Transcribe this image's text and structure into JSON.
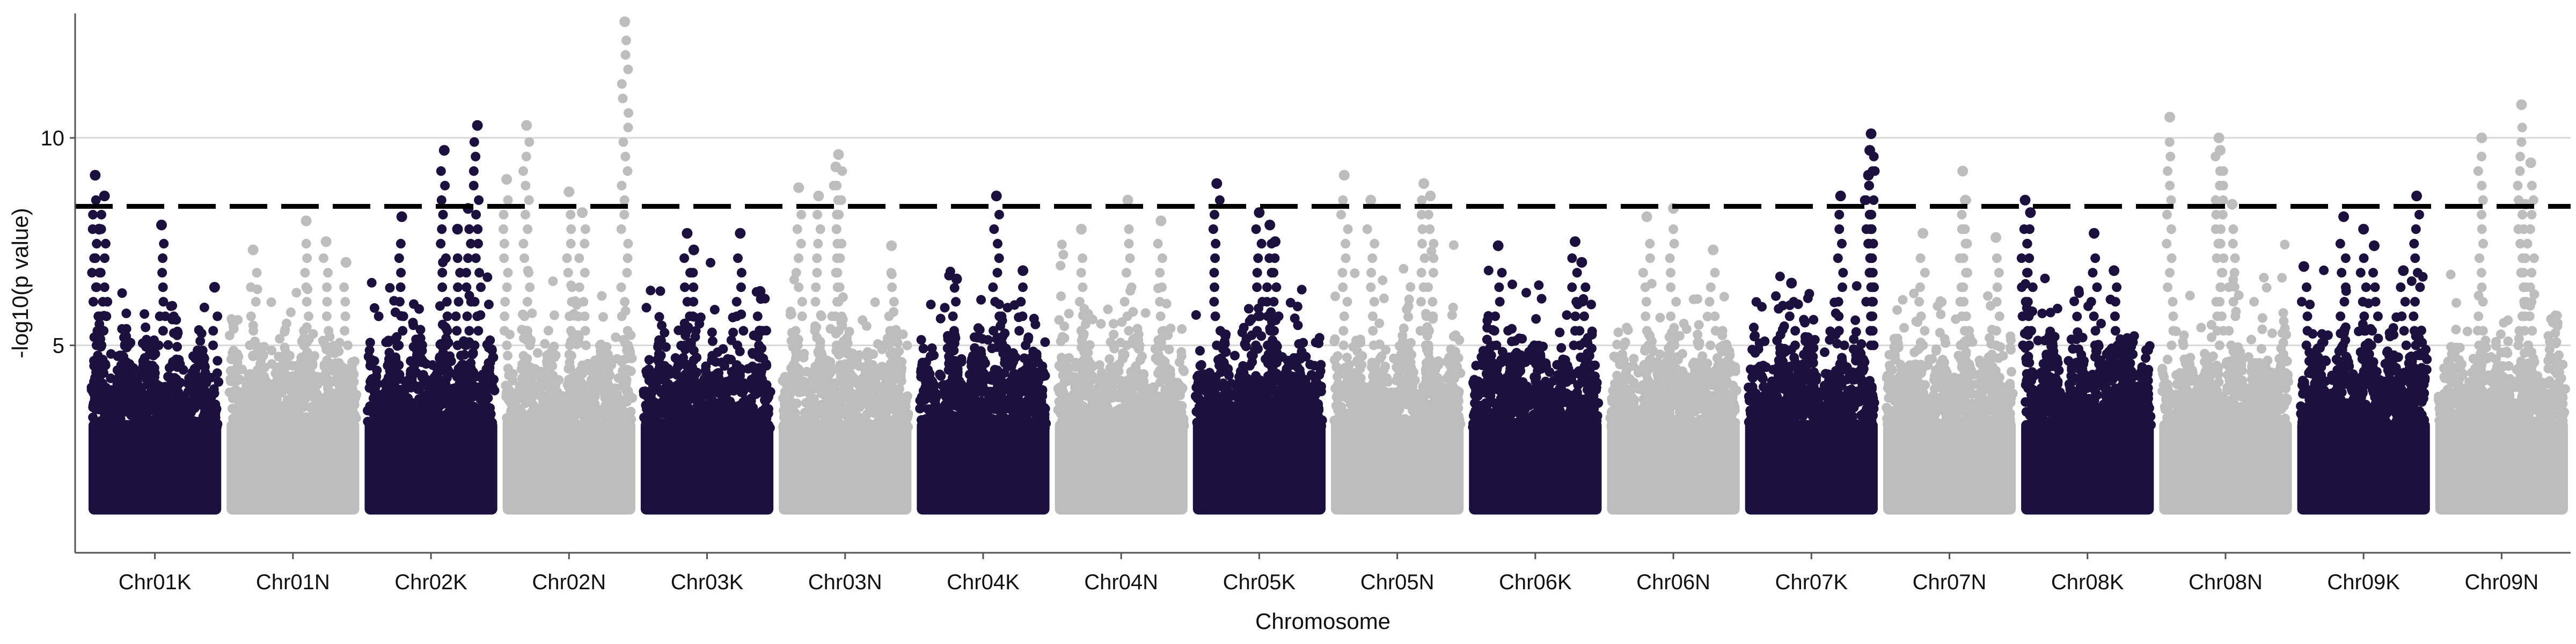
{
  "chart_data": {
    "type": "scatter",
    "title": "",
    "xlabel": "Chromosome",
    "ylabel": "-log10(p value)",
    "ylim": [
      0,
      13
    ],
    "y_ticks": [
      "5",
      "10"
    ],
    "y_tick_values": [
      5,
      10
    ],
    "grid": "horizontal",
    "threshold": 8.35,
    "colors": {
      "dark": "#1c103f",
      "light": "#bdbdbd"
    },
    "categories": [
      "Chr01K",
      "Chr01N",
      "Chr02K",
      "Chr02N",
      "Chr03K",
      "Chr03N",
      "Chr04K",
      "Chr04N",
      "Chr05K",
      "Chr05N",
      "Chr06K",
      "Chr06N",
      "Chr07K",
      "Chr07N",
      "Chr08K",
      "Chr08N",
      "Chr09K",
      "Chr09N"
    ],
    "chromosomes": [
      {
        "name": "Chr01K",
        "color": "dark",
        "max": 9.1,
        "top_points": [
          {
            "pos": 0.05,
            "y": 9.1
          },
          {
            "pos": 0.12,
            "y": 8.6
          },
          {
            "pos": 0.08,
            "y": 7.8
          },
          {
            "pos": 0.55,
            "y": 7.9
          },
          {
            "pos": 0.95,
            "y": 6.4
          }
        ]
      },
      {
        "name": "Chr01N",
        "color": "light",
        "max": 8.0,
        "top_points": [
          {
            "pos": 0.2,
            "y": 7.3
          },
          {
            "pos": 0.6,
            "y": 8.0
          },
          {
            "pos": 0.75,
            "y": 7.5
          },
          {
            "pos": 0.9,
            "y": 7.0
          }
        ]
      },
      {
        "name": "Chr02K",
        "color": "dark",
        "max": 10.3,
        "top_points": [
          {
            "pos": 0.28,
            "y": 8.1
          },
          {
            "pos": 0.6,
            "y": 9.7
          },
          {
            "pos": 0.85,
            "y": 10.3
          },
          {
            "pos": 0.78,
            "y": 8.3
          },
          {
            "pos": 0.7,
            "y": 7.8
          }
        ]
      },
      {
        "name": "Chr02N",
        "color": "light",
        "max": 12.8,
        "top_points": [
          {
            "pos": 0.03,
            "y": 9.0
          },
          {
            "pos": 0.18,
            "y": 10.3
          },
          {
            "pos": 0.5,
            "y": 8.7
          },
          {
            "pos": 0.92,
            "y": 12.8
          },
          {
            "pos": 0.6,
            "y": 8.2
          }
        ]
      },
      {
        "name": "Chr03K",
        "color": "dark",
        "max": 7.7,
        "top_points": [
          {
            "pos": 0.35,
            "y": 7.7
          },
          {
            "pos": 0.75,
            "y": 7.7
          },
          {
            "pos": 0.4,
            "y": 7.3
          },
          {
            "pos": 0.9,
            "y": 6.3
          }
        ]
      },
      {
        "name": "Chr03N",
        "color": "light",
        "max": 9.6,
        "top_points": [
          {
            "pos": 0.15,
            "y": 8.8
          },
          {
            "pos": 0.45,
            "y": 9.6
          },
          {
            "pos": 0.43,
            "y": 9.3
          },
          {
            "pos": 0.3,
            "y": 8.6
          },
          {
            "pos": 0.85,
            "y": 7.4
          }
        ]
      },
      {
        "name": "Chr04K",
        "color": "dark",
        "max": 8.6,
        "top_points": [
          {
            "pos": 0.3,
            "y": 6.6
          },
          {
            "pos": 0.6,
            "y": 8.6
          },
          {
            "pos": 0.8,
            "y": 6.8
          }
        ]
      },
      {
        "name": "Chr04N",
        "color": "light",
        "max": 8.5,
        "top_points": [
          {
            "pos": 0.2,
            "y": 7.8
          },
          {
            "pos": 0.55,
            "y": 8.5
          },
          {
            "pos": 0.8,
            "y": 8.0
          }
        ]
      },
      {
        "name": "Chr05K",
        "color": "dark",
        "max": 8.9,
        "top_points": [
          {
            "pos": 0.18,
            "y": 8.9
          },
          {
            "pos": 0.5,
            "y": 8.2
          },
          {
            "pos": 0.58,
            "y": 7.9
          },
          {
            "pos": 0.62,
            "y": 7.5
          }
        ]
      },
      {
        "name": "Chr05N",
        "color": "light",
        "max": 9.1,
        "top_points": [
          {
            "pos": 0.1,
            "y": 9.1
          },
          {
            "pos": 0.3,
            "y": 8.5
          },
          {
            "pos": 0.7,
            "y": 8.9
          },
          {
            "pos": 0.75,
            "y": 8.6
          }
        ]
      },
      {
        "name": "Chr06K",
        "color": "dark",
        "max": 7.5,
        "top_points": [
          {
            "pos": 0.22,
            "y": 7.4
          },
          {
            "pos": 0.8,
            "y": 7.5
          },
          {
            "pos": 0.85,
            "y": 7.0
          }
        ]
      },
      {
        "name": "Chr06N",
        "color": "light",
        "max": 8.3,
        "top_points": [
          {
            "pos": 0.3,
            "y": 8.1
          },
          {
            "pos": 0.5,
            "y": 8.3
          },
          {
            "pos": 0.8,
            "y": 7.3
          }
        ]
      },
      {
        "name": "Chr07K",
        "color": "dark",
        "max": 10.1,
        "top_points": [
          {
            "pos": 0.35,
            "y": 6.5
          },
          {
            "pos": 0.72,
            "y": 8.6
          },
          {
            "pos": 0.95,
            "y": 10.1
          },
          {
            "pos": 0.94,
            "y": 9.7
          },
          {
            "pos": 0.93,
            "y": 9.1
          }
        ]
      },
      {
        "name": "Chr07N",
        "color": "light",
        "max": 9.2,
        "top_points": [
          {
            "pos": 0.3,
            "y": 7.7
          },
          {
            "pos": 0.6,
            "y": 9.2
          },
          {
            "pos": 0.62,
            "y": 8.5
          },
          {
            "pos": 0.85,
            "y": 7.6
          }
        ]
      },
      {
        "name": "Chr08K",
        "color": "dark",
        "max": 8.5,
        "top_points": [
          {
            "pos": 0.03,
            "y": 8.5
          },
          {
            "pos": 0.07,
            "y": 8.2
          },
          {
            "pos": 0.55,
            "y": 7.7
          },
          {
            "pos": 0.7,
            "y": 6.8
          }
        ]
      },
      {
        "name": "Chr08N",
        "color": "light",
        "max": 10.5,
        "top_points": [
          {
            "pos": 0.08,
            "y": 10.5
          },
          {
            "pos": 0.45,
            "y": 10.0
          },
          {
            "pos": 0.46,
            "y": 9.7
          },
          {
            "pos": 0.55,
            "y": 8.4
          }
        ]
      },
      {
        "name": "Chr09K",
        "color": "dark",
        "max": 8.6,
        "top_points": [
          {
            "pos": 0.05,
            "y": 6.9
          },
          {
            "pos": 0.35,
            "y": 8.1
          },
          {
            "pos": 0.5,
            "y": 7.8
          },
          {
            "pos": 0.58,
            "y": 7.4
          },
          {
            "pos": 0.8,
            "y": 6.8
          },
          {
            "pos": 0.9,
            "y": 8.6
          }
        ]
      },
      {
        "name": "Chr09N",
        "color": "light",
        "max": 10.8,
        "top_points": [
          {
            "pos": 0.35,
            "y": 10.0
          },
          {
            "pos": 0.65,
            "y": 10.8
          },
          {
            "pos": 0.72,
            "y": 9.4
          },
          {
            "pos": 0.68,
            "y": 8.4
          }
        ]
      }
    ]
  }
}
